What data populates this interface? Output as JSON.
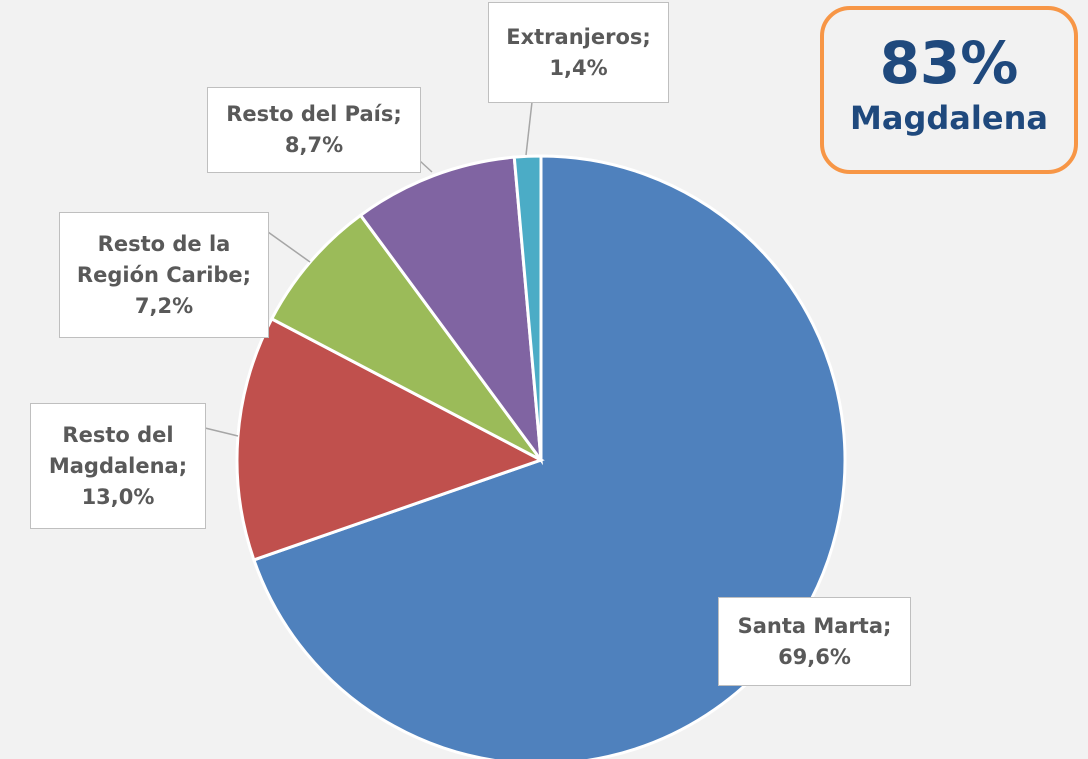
{
  "chart_data": {
    "type": "pie",
    "categories": [
      "Santa Marta;",
      "Resto del Magdalena;",
      "Resto de la Región Caribe;",
      "Resto del País;",
      "Extranjeros;"
    ],
    "values": [
      69.6,
      13.0,
      7.2,
      8.7,
      1.4
    ],
    "value_labels": [
      "69,6%",
      "13,0%",
      "7,2%",
      "8,7%",
      "1,4%"
    ],
    "colors": [
      "#4f81bd",
      "#c0504d",
      "#9bbb59",
      "#8064a2",
      "#4bacc6"
    ],
    "annotation": {
      "value_label": "83%",
      "label": "Magdalena"
    }
  }
}
